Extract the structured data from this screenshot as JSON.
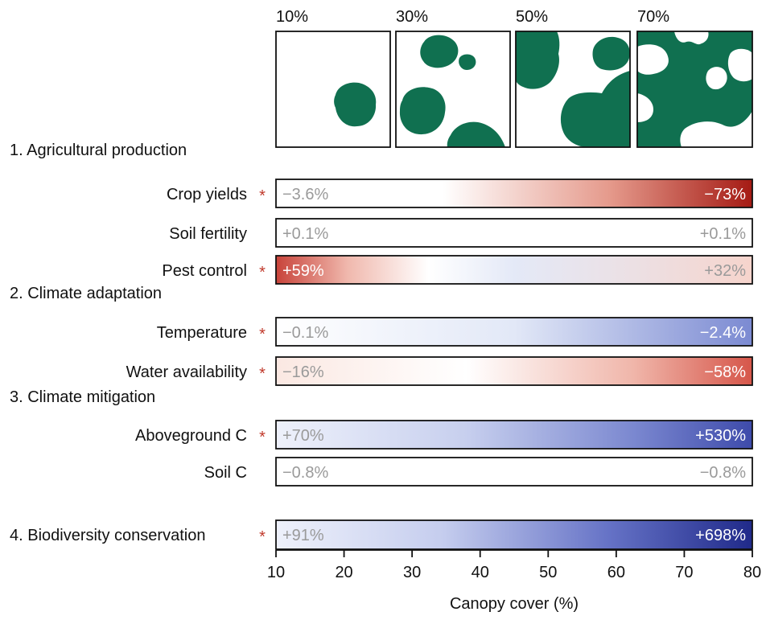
{
  "chart_data": {
    "type": "heatmap",
    "xlabel": "Canopy cover (%)",
    "xlim": [
      10,
      80
    ],
    "x_ticks": [
      10,
      20,
      30,
      40,
      50,
      60,
      70,
      80
    ],
    "canopy_panels": [
      {
        "label": "10%",
        "cover": 10
      },
      {
        "label": "30%",
        "cover": 30
      },
      {
        "label": "50%",
        "cover": 50
      },
      {
        "label": "70%",
        "cover": 70
      }
    ],
    "colors": {
      "canopy": "#107050",
      "negative": "#a51b14",
      "positive": "#25308f",
      "neutral_text": "#9a9a9a",
      "star": "#c0392b"
    },
    "groups": [
      {
        "label": "1. Agricultural production",
        "rows": [
          {
            "label": "Crop yields",
            "significant": true,
            "start_label": "−3.6%",
            "end_label": "−73%",
            "start_value": -3.6,
            "end_value": -73,
            "effect": "negative"
          },
          {
            "label": "Soil fertility",
            "significant": false,
            "start_label": "+0.1%",
            "end_label": "+0.1%",
            "start_value": 0.1,
            "end_value": 0.1,
            "effect": "none"
          },
          {
            "label": "Pest control",
            "significant": true,
            "start_label": "+59%",
            "end_label": "+32%",
            "start_value": 59,
            "end_value": 32,
            "effect": "mixed"
          }
        ]
      },
      {
        "label": "2. Climate adaptation",
        "rows": [
          {
            "label": "Temperature",
            "significant": true,
            "start_label": "−0.1%",
            "end_label": "−2.4%",
            "start_value": -0.1,
            "end_value": -2.4,
            "effect": "positive"
          },
          {
            "label": "Water availability",
            "significant": true,
            "start_label": "−16%",
            "end_label": "−58%",
            "start_value": -16,
            "end_value": -58,
            "effect": "negative"
          }
        ]
      },
      {
        "label": "3. Climate mitigation",
        "rows": [
          {
            "label": "Aboveground C",
            "significant": true,
            "start_label": "+70%",
            "end_label": "+530%",
            "start_value": 70,
            "end_value": 530,
            "effect": "positive"
          },
          {
            "label": "Soil C",
            "significant": false,
            "start_label": "−0.8%",
            "end_label": "−0.8%",
            "start_value": -0.8,
            "end_value": -0.8,
            "effect": "none"
          }
        ]
      },
      {
        "label": "4. Biodiversity conservation",
        "significant": true,
        "start_label": "+91%",
        "end_label": "+698%",
        "start_value": 91,
        "end_value": 698,
        "effect": "positive"
      }
    ]
  }
}
